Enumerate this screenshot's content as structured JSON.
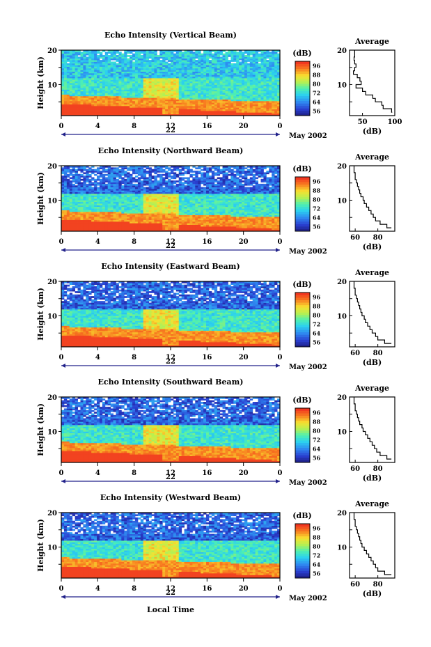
{
  "figure": {
    "date_label": "May 2002",
    "day_label": "22",
    "xlabel": "Local Time",
    "colorbar_unit": "(dB)",
    "colorbar_ticks": [
      "56",
      "64",
      "72",
      "80",
      "88",
      "96"
    ],
    "ylabel": "Height (km)",
    "avg_title": "Average",
    "avg_xlabel": "(dB)",
    "x_ticks": [
      "0",
      "4",
      "8",
      "12",
      "16",
      "20",
      "0"
    ],
    "y_ticks": [
      "10",
      "20"
    ]
  },
  "chart_data": [
    {
      "type": "heatmap",
      "title": "Echo Intensity (Vertical Beam)",
      "xlabel": "Local Time",
      "ylabel": "Height (km)",
      "x_range_hours": [
        0,
        24
      ],
      "y_range_km": [
        1,
        20
      ],
      "colorbar_range_db": [
        56,
        100
      ],
      "average_profile": {
        "xlim": [
          30,
          100
        ],
        "x_ticks": [
          "50",
          "100"
        ],
        "height_km": [
          2,
          3,
          4,
          5,
          6,
          7,
          8,
          9,
          10,
          11,
          12,
          13,
          14,
          15,
          16,
          17,
          18,
          19,
          20
        ],
        "db": [
          96,
          95,
          82,
          80,
          70,
          66,
          55,
          50,
          40,
          48,
          46,
          42,
          36,
          38,
          40,
          38,
          37,
          38,
          38
        ]
      }
    },
    {
      "type": "heatmap",
      "title": "Echo Intensity (Northward Beam)",
      "xlabel": "Local Time",
      "ylabel": "Height (km)",
      "x_range_hours": [
        0,
        24
      ],
      "y_range_km": [
        1,
        20
      ],
      "colorbar_range_db": [
        56,
        100
      ],
      "average_profile": {
        "xlim": [
          55,
          95
        ],
        "x_ticks": [
          "60",
          "80"
        ],
        "height_km": [
          2,
          3,
          4,
          5,
          6,
          7,
          8,
          9,
          10,
          11,
          12,
          13,
          14,
          15,
          16,
          17,
          18,
          19,
          20
        ],
        "db": [
          92,
          88,
          82,
          78,
          76,
          74,
          72,
          70,
          68,
          67,
          65,
          64,
          63,
          62,
          61,
          60,
          60,
          59,
          59
        ]
      }
    },
    {
      "type": "heatmap",
      "title": "Echo Intensity (Eastward Beam)",
      "xlabel": "Local Time",
      "ylabel": "Height (km)",
      "x_range_hours": [
        0,
        24
      ],
      "y_range_km": [
        1,
        20
      ],
      "colorbar_range_db": [
        56,
        100
      ],
      "average_profile": {
        "xlim": [
          55,
          95
        ],
        "x_ticks": [
          "60",
          "80"
        ],
        "height_km": [
          2,
          3,
          4,
          5,
          6,
          7,
          8,
          9,
          10,
          11,
          12,
          13,
          14,
          15,
          16,
          17,
          18,
          19,
          20
        ],
        "db": [
          92,
          86,
          80,
          78,
          75,
          73,
          71,
          69,
          68,
          66,
          65,
          64,
          63,
          62,
          61,
          60,
          60,
          59,
          59
        ]
      }
    },
    {
      "type": "heatmap",
      "title": "Echo Intensity (Southward Beam)",
      "xlabel": "Local Time",
      "ylabel": "Height (km)",
      "x_range_hours": [
        0,
        24
      ],
      "y_range_km": [
        1,
        20
      ],
      "colorbar_range_db": [
        56,
        100
      ],
      "average_profile": {
        "xlim": [
          55,
          95
        ],
        "x_ticks": [
          "60",
          "80"
        ],
        "height_km": [
          2,
          3,
          4,
          5,
          6,
          7,
          8,
          9,
          10,
          11,
          12,
          13,
          14,
          15,
          16,
          17,
          18,
          19,
          20
        ],
        "db": [
          92,
          88,
          82,
          79,
          77,
          75,
          73,
          71,
          69,
          67,
          66,
          64,
          63,
          62,
          61,
          60,
          60,
          59,
          59
        ]
      }
    },
    {
      "type": "heatmap",
      "title": "Echo Intensity (Westward Beam)",
      "xlabel": "Local Time",
      "ylabel": "Height (km)",
      "x_range_hours": [
        0,
        24
      ],
      "y_range_km": [
        1,
        20
      ],
      "colorbar_range_db": [
        56,
        100
      ],
      "average_profile": {
        "xlim": [
          55,
          95
        ],
        "x_ticks": [
          "60",
          "80"
        ],
        "height_km": [
          2,
          3,
          4,
          5,
          6,
          7,
          8,
          9,
          10,
          11,
          12,
          13,
          14,
          15,
          16,
          17,
          18,
          19,
          20
        ],
        "db": [
          92,
          86,
          80,
          78,
          76,
          74,
          72,
          70,
          68,
          66,
          65,
          64,
          63,
          62,
          61,
          60,
          60,
          59,
          59
        ]
      }
    }
  ]
}
